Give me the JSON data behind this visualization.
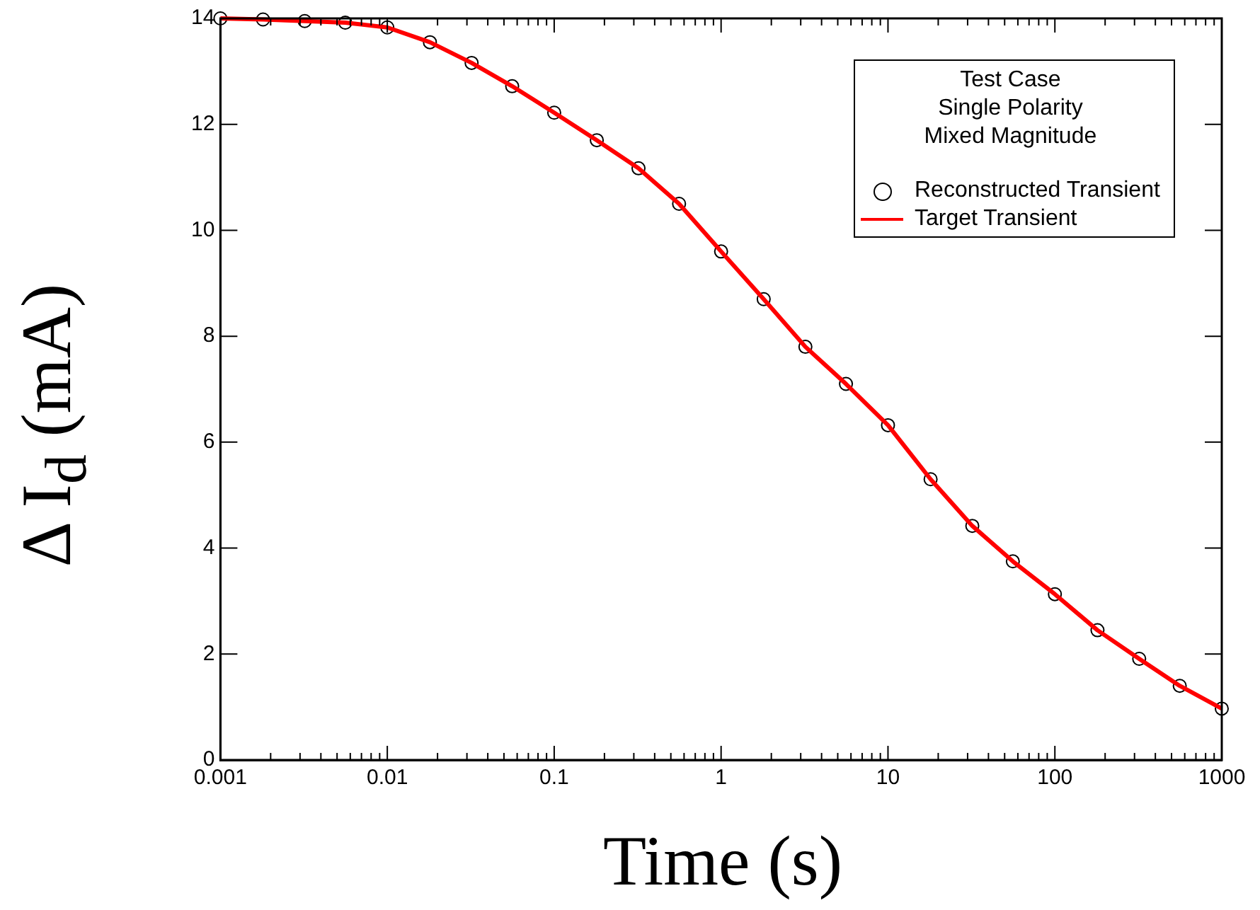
{
  "chart_data": {
    "type": "scatter",
    "xlabel": "Time (s)",
    "ylabel": "Δ I$_{d}$ (mA)",
    "legend_title": "Test Case\nSingle Polarity\nMixed Magnitude",
    "legend": "top right",
    "grid": false,
    "log": "x",
    "xlim": [
      0.001,
      1000
    ],
    "ylim": [
      0,
      14
    ],
    "xticks": [
      {
        "value": 0.001,
        "label": "0.001"
      },
      {
        "value": 0.002,
        "label": null
      },
      {
        "value": 0.003,
        "label": null
      },
      {
        "value": 0.004,
        "label": null
      },
      {
        "value": 0.005,
        "label": null
      },
      {
        "value": 0.006,
        "label": null
      },
      {
        "value": 0.007,
        "label": null
      },
      {
        "value": 0.008,
        "label": null
      },
      {
        "value": 0.009,
        "label": null
      },
      {
        "value": 0.01,
        "label": "0.01"
      },
      {
        "value": 0.02,
        "label": null
      },
      {
        "value": 0.03,
        "label": null
      },
      {
        "value": 0.04,
        "label": null
      },
      {
        "value": 0.05,
        "label": null
      },
      {
        "value": 0.06,
        "label": null
      },
      {
        "value": 0.07,
        "label": null
      },
      {
        "value": 0.08,
        "label": null
      },
      {
        "value": 0.09,
        "label": null
      },
      {
        "value": 0.1,
        "label": "0.1"
      },
      {
        "value": 0.2,
        "label": null
      },
      {
        "value": 0.3,
        "label": null
      },
      {
        "value": 0.4,
        "label": null
      },
      {
        "value": 0.5,
        "label": null
      },
      {
        "value": 0.6,
        "label": null
      },
      {
        "value": 0.7,
        "label": null
      },
      {
        "value": 0.8,
        "label": null
      },
      {
        "value": 0.9,
        "label": null
      },
      1,
      {
        "value": 2,
        "label": null
      },
      {
        "value": 3,
        "label": null
      },
      {
        "value": 4,
        "label": null
      },
      {
        "value": 5,
        "label": null
      },
      {
        "value": 6,
        "label": null
      },
      {
        "value": 7,
        "label": null
      },
      {
        "value": 8,
        "label": null
      },
      {
        "value": 9,
        "label": null
      },
      10,
      {
        "value": 20,
        "label": null
      },
      {
        "value": 30,
        "label": null
      },
      {
        "value": 40,
        "label": null
      },
      {
        "value": 50,
        "label": null
      },
      {
        "value": 60,
        "label": null
      },
      {
        "value": 70,
        "label": null
      },
      {
        "value": 80,
        "label": null
      },
      {
        "value": 90,
        "label": null
      },
      100,
      {
        "value": 200,
        "label": null
      },
      {
        "value": 300,
        "label": null
      },
      {
        "value": 400,
        "label": null
      },
      {
        "value": 500,
        "label": null
      },
      {
        "value": 600,
        "label": null
      },
      {
        "value": 700,
        "label": null
      },
      {
        "value": 800,
        "label": null
      },
      {
        "value": 900,
        "label": null
      },
      1000
    ],
    "yticks": [
      0,
      2,
      4,
      6,
      8,
      10,
      12,
      14
    ],
    "x": [
      0.001,
      0.0018,
      0.0032,
      0.0056,
      0.01,
      0.018,
      0.032,
      0.056,
      0.1,
      0.18,
      0.32,
      0.56,
      1,
      1.8,
      3.2,
      5.6,
      10,
      18,
      32,
      56,
      100,
      180,
      320,
      560,
      1000
    ],
    "series": [
      {
        "name": "Reconstructed Transient",
        "type": "scatter",
        "marker": "circle",
        "color": "#000000",
        "values": [
          14.0,
          13.98,
          13.95,
          13.92,
          13.83,
          13.55,
          13.16,
          12.72,
          12.22,
          11.7,
          11.17,
          10.5,
          9.6,
          8.7,
          7.8,
          7.1,
          6.32,
          5.3,
          4.42,
          3.75,
          3.13,
          2.45,
          1.91,
          1.4,
          0.97
        ]
      },
      {
        "name": "Target Transient",
        "type": "line",
        "marker": "none",
        "color": "#ff0000",
        "values": [
          14.0,
          13.98,
          13.95,
          13.92,
          13.83,
          13.55,
          13.16,
          12.72,
          12.22,
          11.7,
          11.17,
          10.5,
          9.6,
          8.7,
          7.8,
          7.1,
          6.32,
          5.3,
          4.42,
          3.75,
          3.13,
          2.45,
          1.91,
          1.4,
          0.97
        ]
      }
    ]
  }
}
